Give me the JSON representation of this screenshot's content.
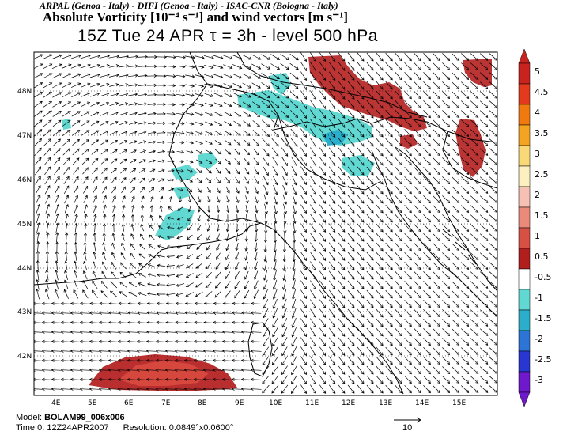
{
  "header": {
    "credit": "ARPAL (Genoa - Italy) - DIFI (Genoa - Italy) - ISAC-CNR (Bologna - Italy)",
    "title": "Absolute Vorticity [10⁻⁴ s⁻¹] and wind vectors [m s⁻¹]",
    "subtitle": "15Z Tue 24 APR   τ = 3h   -   level 500 hPa"
  },
  "map": {
    "lat_labels": [
      "48N",
      "47N",
      "46N",
      "45N",
      "44N",
      "43N",
      "42N"
    ],
    "lon_labels": [
      "4E",
      "5E",
      "6E",
      "7E",
      "8E",
      "9E",
      "10E",
      "11E",
      "12E",
      "13E",
      "14E",
      "15E"
    ],
    "extent": {
      "lon_min": 3.1,
      "lon_max": 15.8,
      "lat_min": 41.2,
      "lat_max": 48.9
    }
  },
  "colorbar": {
    "labels": [
      "5",
      "4.5",
      "4",
      "3.5",
      "3",
      "2.5",
      "2",
      "1.5",
      "1",
      "0.5",
      "-0.5",
      "-1",
      "-1.5",
      "-2",
      "-2.5",
      "-3"
    ],
    "colors": [
      "#c8231e",
      "#e33a1e",
      "#f07a0f",
      "#f5a422",
      "#f9d878",
      "#fdf0c0",
      "#f6c0b4",
      "#ea8a7a",
      "#d65044",
      "#b01e1e",
      "#ffffff",
      "#62d8d2",
      "#2aaecb",
      "#2c74d6",
      "#2a36d2",
      "#7018cc"
    ],
    "arrow_colors": {
      "top": "#c8231e",
      "bottom": "#7018cc"
    }
  },
  "footer": {
    "model_prefix": "Model:",
    "model": "BOLAM99_006x006",
    "time_label": "Time 0: 12Z24APR2007",
    "resolution": "Resolution:  0.0849°x0.0600°",
    "reference_vector": "10"
  }
}
